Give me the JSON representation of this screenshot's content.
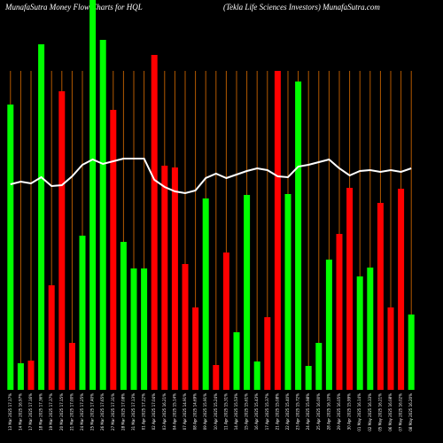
{
  "chart_data": {
    "type": "bar",
    "title": "MunafaSutra  Money Flow  Charts for HQL",
    "subtitle": "(Tekla  Life    Sciences Investors) MunafaSutra.com",
    "categories": [
      "13 Mar 2025 17.17%",
      "14 Mar 2025 16.97%",
      "17 Mar 2025 17.16%",
      "18 Mar 2025 17.36%",
      "19 Mar 2025 17.37%",
      "20 Mar 2025 17.15%",
      "21 Mar 2025 17.00%",
      "24 Mar 2025 17.25%",
      "25 Mar 2025 17.40%",
      "26 Mar 2025 17.65%",
      "27 Mar 2025 17.31%",
      "28 Mar 2025 17.08%",
      "31 Mar 2025 17.13%",
      "01 Apr 2025 17.22%",
      "02 Apr 2025 17.04%",
      "03 Apr 2025 16.21%",
      "04 Apr 2025 15.14%",
      "07 Apr 2025 14.91%",
      "08 Apr 2025 14.69%",
      "09 Apr 2025 15.91%",
      "10 Apr 2025 15.24%",
      "11 Apr 2025 15.31%",
      "14 Apr 2025 15.53%",
      "15 Apr 2025 15.61%",
      "16 Apr 2025 15.43%",
      "17 Apr 2025 15.37%",
      "21 Apr 2025 15.08%",
      "22 Apr 2025 15.40%",
      "23 Apr 2025 15.72%",
      "24 Apr 2025 15.98%",
      "25 Apr 2025 16.00%",
      "28 Apr 2025 16.10%",
      "29 Apr 2025 16.05%",
      "30 Apr 2025 15.99%",
      "01 May 2025 16.14%",
      "02 May 2025 16.33%",
      "05 May 2025 16.21%",
      "06 May 2025 16.08%",
      "07 May 2025 16.02%",
      "08 May 2025 16.20%"
    ],
    "values": [
      322,
      30,
      33,
      390,
      118,
      337,
      53,
      174,
      440,
      395,
      316,
      167,
      137,
      137,
      378,
      253,
      251,
      142,
      93,
      216,
      28,
      155,
      65,
      220,
      32,
      82,
      360,
      221,
      348,
      27,
      53,
      147,
      176,
      228,
      128,
      138,
      211,
      93,
      227,
      85
    ],
    "bar_colors": [
      "#00ff00",
      "#00ff00",
      "#ff0000",
      "#00ff00",
      "#ff0000",
      "#ff0000",
      "#ff0000",
      "#00ff00",
      "#00ff00",
      "#00ff00",
      "#ff0000",
      "#00ff00",
      "#00ff00",
      "#00ff00",
      "#ff0000",
      "#ff0000",
      "#ff0000",
      "#ff0000",
      "#ff0000",
      "#00ff00",
      "#ff0000",
      "#ff0000",
      "#00ff00",
      "#00ff00",
      "#00ff00",
      "#ff0000",
      "#ff0000",
      "#00ff00",
      "#00ff00",
      "#00ff00",
      "#00ff00",
      "#00ff00",
      "#ff0000",
      "#ff0000",
      "#00ff00",
      "#00ff00",
      "#ff0000",
      "#ff0000",
      "#ff0000",
      "#00ff00"
    ],
    "line": {
      "color": "#ffffff",
      "values": [
        232,
        235,
        233,
        240,
        230,
        231,
        241,
        254,
        260,
        255,
        258,
        261,
        261,
        261,
        237,
        229,
        224,
        222,
        225,
        239,
        244,
        239,
        243,
        247,
        250,
        248,
        241,
        240,
        252,
        254,
        257,
        260,
        250,
        242,
        247,
        248,
        246,
        248,
        246,
        250
      ]
    },
    "ylim": [
      0,
      440
    ]
  }
}
